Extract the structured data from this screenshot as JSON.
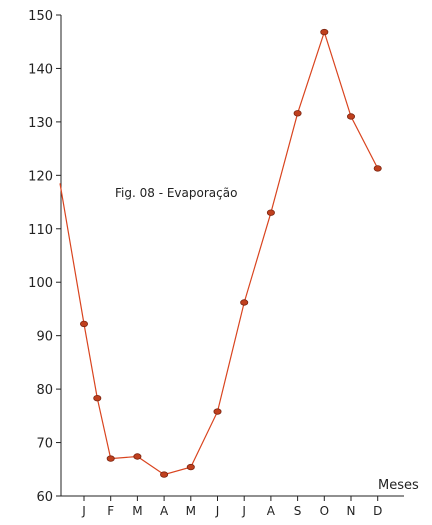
{
  "chart_data": {
    "type": "line",
    "title": "Fig. 08 - Evaporação",
    "xlabel": "Meses",
    "ylabel": "",
    "ylim": [
      60,
      150
    ],
    "y_ticks": [
      60,
      70,
      80,
      90,
      100,
      110,
      120,
      130,
      140,
      150
    ],
    "categories": [
      "J",
      "F",
      "M",
      "A",
      "M",
      "J",
      "J",
      "A",
      "S",
      "O",
      "N",
      "D"
    ],
    "series": [
      {
        "name": "",
        "points": [
          {
            "x": 0.1,
            "y": 118.5
          },
          {
            "x": 1.0,
            "y": 92.2
          },
          {
            "x": 1.5,
            "y": 78.3
          },
          {
            "x": 2.0,
            "y": 67.0
          },
          {
            "x": 3.0,
            "y": 67.4
          },
          {
            "x": 4.0,
            "y": 64.0
          },
          {
            "x": 5.0,
            "y": 65.4
          },
          {
            "x": 6.0,
            "y": 75.8
          },
          {
            "x": 7.0,
            "y": 96.2
          },
          {
            "x": 8.0,
            "y": 113.0
          },
          {
            "x": 9.0,
            "y": 131.6
          },
          {
            "x": 10.0,
            "y": 146.8
          },
          {
            "x": 11.0,
            "y": 131.0
          },
          {
            "x": 12.0,
            "y": 121.3
          }
        ],
        "marker_at_start": false
      }
    ],
    "colors": {
      "line": "#d9441f",
      "marker_fill": "#c0401e",
      "marker_stroke": "#7a2410",
      "axis": "#222222"
    },
    "grid": false,
    "legend": "none"
  }
}
